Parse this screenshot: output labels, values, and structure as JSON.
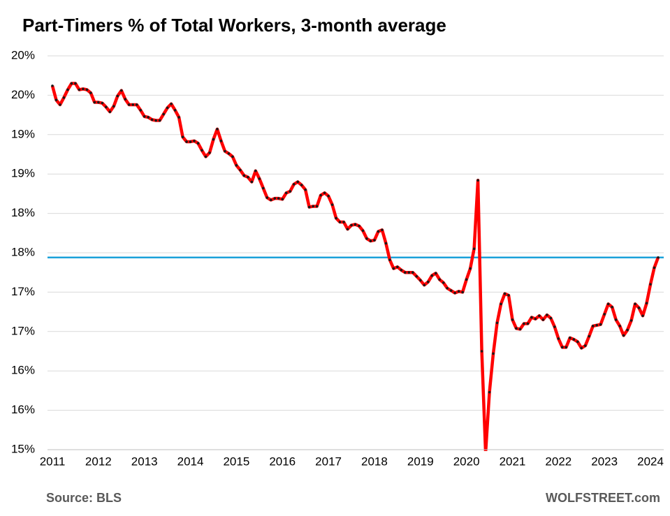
{
  "chart_data": {
    "type": "line",
    "title": "Part-Timers %  of Total Workers, 3-month average",
    "source": "Source: BLS",
    "credit": "WOLFSTREET.com",
    "color": "#ff0000",
    "marker_color": "#1a1a1a",
    "grid": true,
    "hline": {
      "value": 17.44,
      "color": "#1ba1d9"
    },
    "ylim": [
      15,
      20
    ],
    "yticks": [
      {
        "value": 15,
        "label": "15%"
      },
      {
        "value": 15.5,
        "label": "16%"
      },
      {
        "value": 16,
        "label": "16%"
      },
      {
        "value": 16.5,
        "label": "17%"
      },
      {
        "value": 17,
        "label": "17%"
      },
      {
        "value": 17.5,
        "label": "18%"
      },
      {
        "value": 18,
        "label": "18%"
      },
      {
        "value": 18.5,
        "label": "19%"
      },
      {
        "value": 19,
        "label": "19%"
      },
      {
        "value": 19.5,
        "label": "20%"
      },
      {
        "value": 20,
        "label": "20%"
      }
    ],
    "categories": [
      "2011",
      null,
      null,
      null,
      null,
      null,
      null,
      null,
      null,
      null,
      null,
      null,
      "2012",
      null,
      null,
      null,
      null,
      null,
      null,
      null,
      null,
      null,
      null,
      null,
      "2013",
      null,
      null,
      null,
      null,
      null,
      null,
      null,
      null,
      null,
      null,
      null,
      "2014",
      null,
      null,
      null,
      null,
      null,
      null,
      null,
      null,
      null,
      null,
      null,
      "2015",
      null,
      null,
      null,
      null,
      null,
      null,
      null,
      null,
      null,
      null,
      null,
      "2016",
      null,
      null,
      null,
      null,
      null,
      null,
      null,
      null,
      null,
      null,
      null,
      "2017",
      null,
      null,
      null,
      null,
      null,
      null,
      null,
      null,
      null,
      null,
      null,
      "2018",
      null,
      null,
      null,
      null,
      null,
      null,
      null,
      null,
      null,
      null,
      null,
      "2019",
      null,
      null,
      null,
      null,
      null,
      null,
      null,
      null,
      null,
      null,
      null,
      "2020",
      null,
      null,
      null,
      null,
      null,
      null,
      null,
      null,
      null,
      null,
      null,
      "2021",
      null,
      null,
      null,
      null,
      null,
      null,
      null,
      null,
      null,
      null,
      null,
      "2022",
      null,
      null,
      null,
      null,
      null,
      null,
      null,
      null,
      null,
      null,
      null,
      "2023",
      null,
      null,
      null,
      null,
      null,
      null,
      null,
      null,
      null,
      null,
      null,
      "2024",
      null,
      null
    ],
    "values": [
      19.62,
      19.44,
      19.38,
      19.47,
      19.57,
      19.65,
      19.65,
      19.57,
      19.58,
      19.57,
      19.53,
      19.41,
      19.41,
      19.4,
      19.35,
      19.29,
      19.36,
      19.49,
      19.56,
      19.45,
      19.38,
      19.38,
      19.38,
      19.31,
      19.23,
      19.22,
      19.19,
      19.18,
      19.18,
      19.26,
      19.34,
      19.39,
      19.31,
      19.22,
      18.97,
      18.91,
      18.91,
      18.92,
      18.89,
      18.8,
      18.72,
      18.77,
      18.94,
      19.07,
      18.92,
      18.79,
      18.76,
      18.72,
      18.61,
      18.55,
      18.48,
      18.46,
      18.4,
      18.54,
      18.44,
      18.32,
      18.2,
      18.17,
      18.19,
      18.19,
      18.18,
      18.26,
      18.28,
      18.37,
      18.4,
      18.36,
      18.3,
      18.08,
      18.09,
      18.09,
      18.23,
      18.26,
      18.22,
      18.11,
      17.94,
      17.89,
      17.89,
      17.8,
      17.85,
      17.86,
      17.84,
      17.78,
      17.68,
      17.65,
      17.66,
      17.77,
      17.79,
      17.62,
      17.41,
      17.3,
      17.32,
      17.28,
      17.25,
      17.25,
      17.25,
      17.2,
      17.15,
      17.09,
      17.13,
      17.21,
      17.24,
      17.16,
      17.12,
      17.05,
      17.02,
      16.99,
      17.01,
      17.0,
      17.16,
      17.3,
      17.55,
      18.42,
      16.25,
      14.96,
      15.73,
      16.22,
      16.61,
      16.85,
      16.98,
      16.96,
      16.65,
      16.54,
      16.53,
      16.6,
      16.6,
      16.68,
      16.66,
      16.7,
      16.65,
      16.71,
      16.67,
      16.56,
      16.41,
      16.3,
      16.3,
      16.42,
      16.4,
      16.37,
      16.29,
      16.32,
      16.44,
      16.57,
      16.58,
      16.59,
      16.72,
      16.85,
      16.81,
      16.65,
      16.57,
      16.45,
      16.52,
      16.64,
      16.85,
      16.8,
      16.7,
      16.86,
      17.1,
      17.31,
      17.44
    ]
  }
}
